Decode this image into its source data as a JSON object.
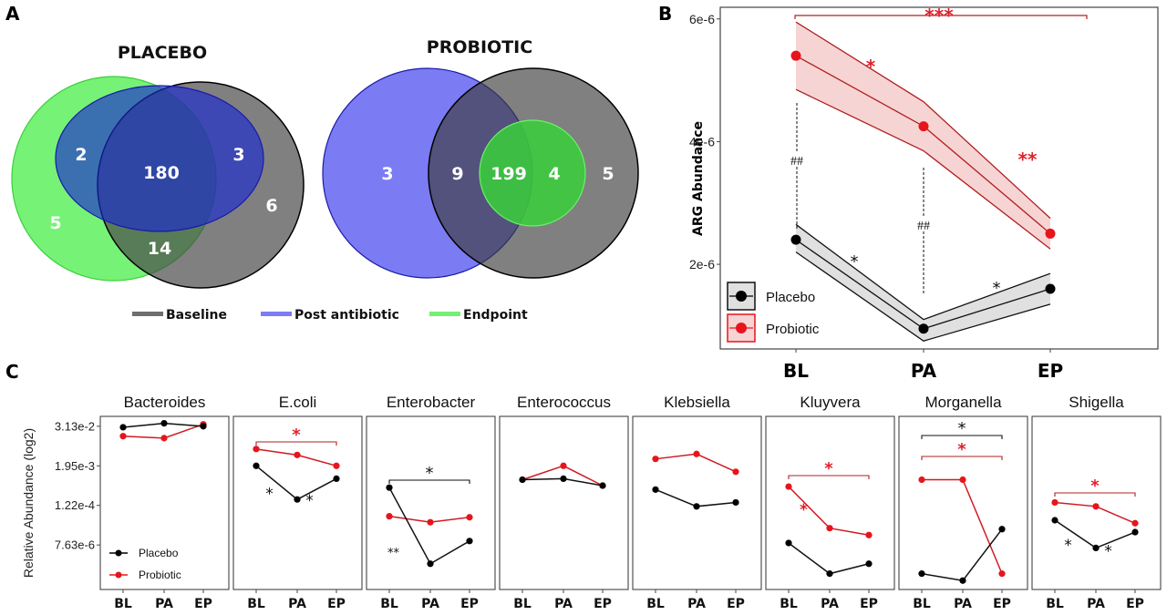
{
  "panel_labels": {
    "a": "A",
    "b": "B",
    "c": "C"
  },
  "colors": {
    "baseline": "#6e6e6e",
    "post_antibiotic": "#5a5af0",
    "endpoint": "#5ef05e",
    "placebo": "#000000",
    "probiotic": "#e8141c",
    "probiotic_band": "#f7d4d4",
    "placebo_band": "#e0e0e0"
  },
  "chart_data": [
    {
      "type": "venn",
      "panel": "A",
      "title": "PLACEBO",
      "sets": [
        "Baseline",
        "Post antibiotic",
        "Endpoint"
      ],
      "regions": [
        {
          "sets": [
            "Endpoint"
          ],
          "value": 5
        },
        {
          "sets": [
            "Endpoint",
            "Post antibiotic"
          ],
          "value": 2
        },
        {
          "sets": [
            "Baseline",
            "Post antibiotic",
            "Endpoint"
          ],
          "value": 180
        },
        {
          "sets": [
            "Baseline",
            "Post antibiotic"
          ],
          "value": 3
        },
        {
          "sets": [
            "Baseline"
          ],
          "value": 6
        },
        {
          "sets": [
            "Baseline",
            "Endpoint"
          ],
          "value": 14
        }
      ]
    },
    {
      "type": "venn",
      "panel": "A",
      "title": "PROBIOTIC",
      "sets": [
        "Baseline",
        "Post antibiotic",
        "Endpoint"
      ],
      "regions": [
        {
          "sets": [
            "Post antibiotic"
          ],
          "value": 3
        },
        {
          "sets": [
            "Baseline",
            "Post antibiotic"
          ],
          "value": 9
        },
        {
          "sets": [
            "Baseline",
            "Post antibiotic",
            "Endpoint"
          ],
          "value": 199
        },
        {
          "sets": [
            "Baseline",
            "Endpoint"
          ],
          "value": 4
        },
        {
          "sets": [
            "Baseline"
          ],
          "value": 5
        }
      ],
      "legend": [
        "Baseline",
        "Post antibiotic",
        "Endpoint"
      ]
    },
    {
      "type": "line",
      "panel": "B",
      "title": "",
      "xlabel": "",
      "ylabel": "ARG Abundance",
      "categories": [
        "BL",
        "PA",
        "EP"
      ],
      "ylim": [
        6.2e-07,
        6.19e-06
      ],
      "yticks": [
        2e-06,
        4e-06,
        6e-06
      ],
      "ytick_labels": [
        "2e-6",
        "4e-6",
        "6e-6"
      ],
      "legend": {
        "position": "bottom-left",
        "entries": [
          "Placebo",
          "Probiotic"
        ]
      },
      "series": [
        {
          "name": "Placebo",
          "values": [
            2.4e-06,
            9.5e-07,
            1.6e-06
          ],
          "ci_upper": [
            2.65e-06,
            1.1e-06,
            1.85e-06
          ],
          "ci_lower": [
            2.2e-06,
            7.5e-07,
            1.35e-06
          ]
        },
        {
          "name": "Probiotic",
          "values": [
            5.4e-06,
            4.25e-06,
            2.5e-06
          ],
          "ci_upper": [
            5.95e-06,
            4.65e-06,
            2.75e-06
          ],
          "ci_lower": [
            4.85e-06,
            3.85e-06,
            2.25e-06
          ]
        }
      ],
      "annotations": [
        {
          "text": "***",
          "series": "Probiotic",
          "between": [
            "BL",
            "EP"
          ],
          "bracket": true
        },
        {
          "text": "*",
          "series": "Probiotic",
          "between": [
            "BL",
            "PA"
          ]
        },
        {
          "text": "**",
          "series": "Probiotic",
          "between": [
            "PA",
            "EP"
          ]
        },
        {
          "text": "*",
          "series": "Placebo",
          "between": [
            "BL",
            "PA"
          ]
        },
        {
          "text": "*",
          "series": "Placebo",
          "between": [
            "PA",
            "EP"
          ]
        },
        {
          "text": "##",
          "type": "between-groups",
          "at": "BL"
        },
        {
          "text": "##",
          "type": "between-groups",
          "at": "PA"
        }
      ]
    },
    {
      "type": "line",
      "panel": "C",
      "ylabel": "Relative Abundance (log2)",
      "yscale": "log2",
      "categories": [
        "BL",
        "PA",
        "EP"
      ],
      "ylim_log2": [
        -21.5,
        -4.0
      ],
      "yticks_log2": [
        -5,
        -9,
        -13,
        -17
      ],
      "ytick_labels": [
        "3.13e-2",
        "1.95e-3",
        "1.22e-4",
        "7.63e-6"
      ],
      "legend": {
        "position": "bottom-left",
        "panel": "Bacteroides",
        "entries": [
          "Placebo",
          "Probiotic"
        ]
      },
      "facets": [
        {
          "title": "Bacteroides",
          "series": [
            {
              "name": "Placebo",
              "log2_values": [
                -5.1,
                -4.7,
                -5.0
              ]
            },
            {
              "name": "Probiotic",
              "log2_values": [
                -6.0,
                -6.2,
                -4.8
              ]
            }
          ],
          "annotations": []
        },
        {
          "title": "E.coli",
          "series": [
            {
              "name": "Placebo",
              "log2_values": [
                -9.0,
                -12.4,
                -10.3
              ]
            },
            {
              "name": "Probiotic",
              "log2_values": [
                -7.3,
                -7.9,
                -9.0
              ]
            }
          ],
          "annotations": [
            {
              "text": "*",
              "color": "red",
              "bracket": [
                "BL",
                "EP"
              ]
            },
            {
              "text": "*",
              "color": "black",
              "between": [
                "BL",
                "PA"
              ]
            },
            {
              "text": "*",
              "color": "black",
              "between": [
                "PA",
                "EP"
              ]
            }
          ]
        },
        {
          "title": "Enterobacter",
          "series": [
            {
              "name": "Placebo",
              "log2_values": [
                -11.2,
                -18.9,
                -16.6
              ]
            },
            {
              "name": "Probiotic",
              "log2_values": [
                -14.1,
                -14.7,
                -14.2
              ]
            }
          ],
          "annotations": [
            {
              "text": "*",
              "color": "black",
              "bracket": [
                "BL",
                "EP"
              ]
            },
            {
              "text": "**",
              "color": "black",
              "between": [
                "BL",
                "PA"
              ]
            }
          ]
        },
        {
          "title": "Enterococcus",
          "series": [
            {
              "name": "Placebo",
              "log2_values": [
                -10.4,
                -10.3,
                -11.0
              ]
            },
            {
              "name": "Probiotic",
              "log2_values": [
                -10.4,
                -9.0,
                -11.0
              ]
            }
          ],
          "annotations": []
        },
        {
          "title": "Klebsiella",
          "series": [
            {
              "name": "Placebo",
              "log2_values": [
                -11.4,
                -13.1,
                -12.7
              ]
            },
            {
              "name": "Probiotic",
              "log2_values": [
                -8.3,
                -7.8,
                -9.6
              ]
            }
          ],
          "annotations": []
        },
        {
          "title": "Kluyvera",
          "series": [
            {
              "name": "Placebo",
              "log2_values": [
                -16.8,
                -19.9,
                -18.9
              ]
            },
            {
              "name": "Probiotic",
              "log2_values": [
                -11.1,
                -15.3,
                -16.0
              ]
            }
          ],
          "annotations": [
            {
              "text": "*",
              "color": "red",
              "bracket": [
                "BL",
                "EP"
              ]
            },
            {
              "text": "*",
              "color": "red",
              "between": [
                "BL",
                "PA"
              ]
            }
          ]
        },
        {
          "title": "Morganella",
          "series": [
            {
              "name": "Placebo",
              "log2_values": [
                -19.9,
                -20.6,
                -15.4
              ]
            },
            {
              "name": "Probiotic",
              "log2_values": [
                -10.4,
                -10.4,
                -19.9
              ]
            }
          ],
          "annotations": [
            {
              "text": "*",
              "color": "black",
              "bracket": [
                "BL",
                "EP"
              ]
            },
            {
              "text": "*",
              "color": "red",
              "bracket": [
                "BL",
                "EP"
              ]
            }
          ]
        },
        {
          "title": "Shigella",
          "series": [
            {
              "name": "Placebo",
              "log2_values": [
                -14.5,
                -17.3,
                -15.7
              ]
            },
            {
              "name": "Probiotic",
              "log2_values": [
                -12.7,
                -13.1,
                -14.8
              ]
            }
          ],
          "annotations": [
            {
              "text": "*",
              "color": "red",
              "bracket": [
                "BL",
                "EP"
              ]
            },
            {
              "text": "*",
              "color": "black",
              "between": [
                "BL",
                "PA"
              ]
            },
            {
              "text": "*",
              "color": "black",
              "between": [
                "PA",
                "EP"
              ]
            }
          ]
        }
      ]
    }
  ]
}
